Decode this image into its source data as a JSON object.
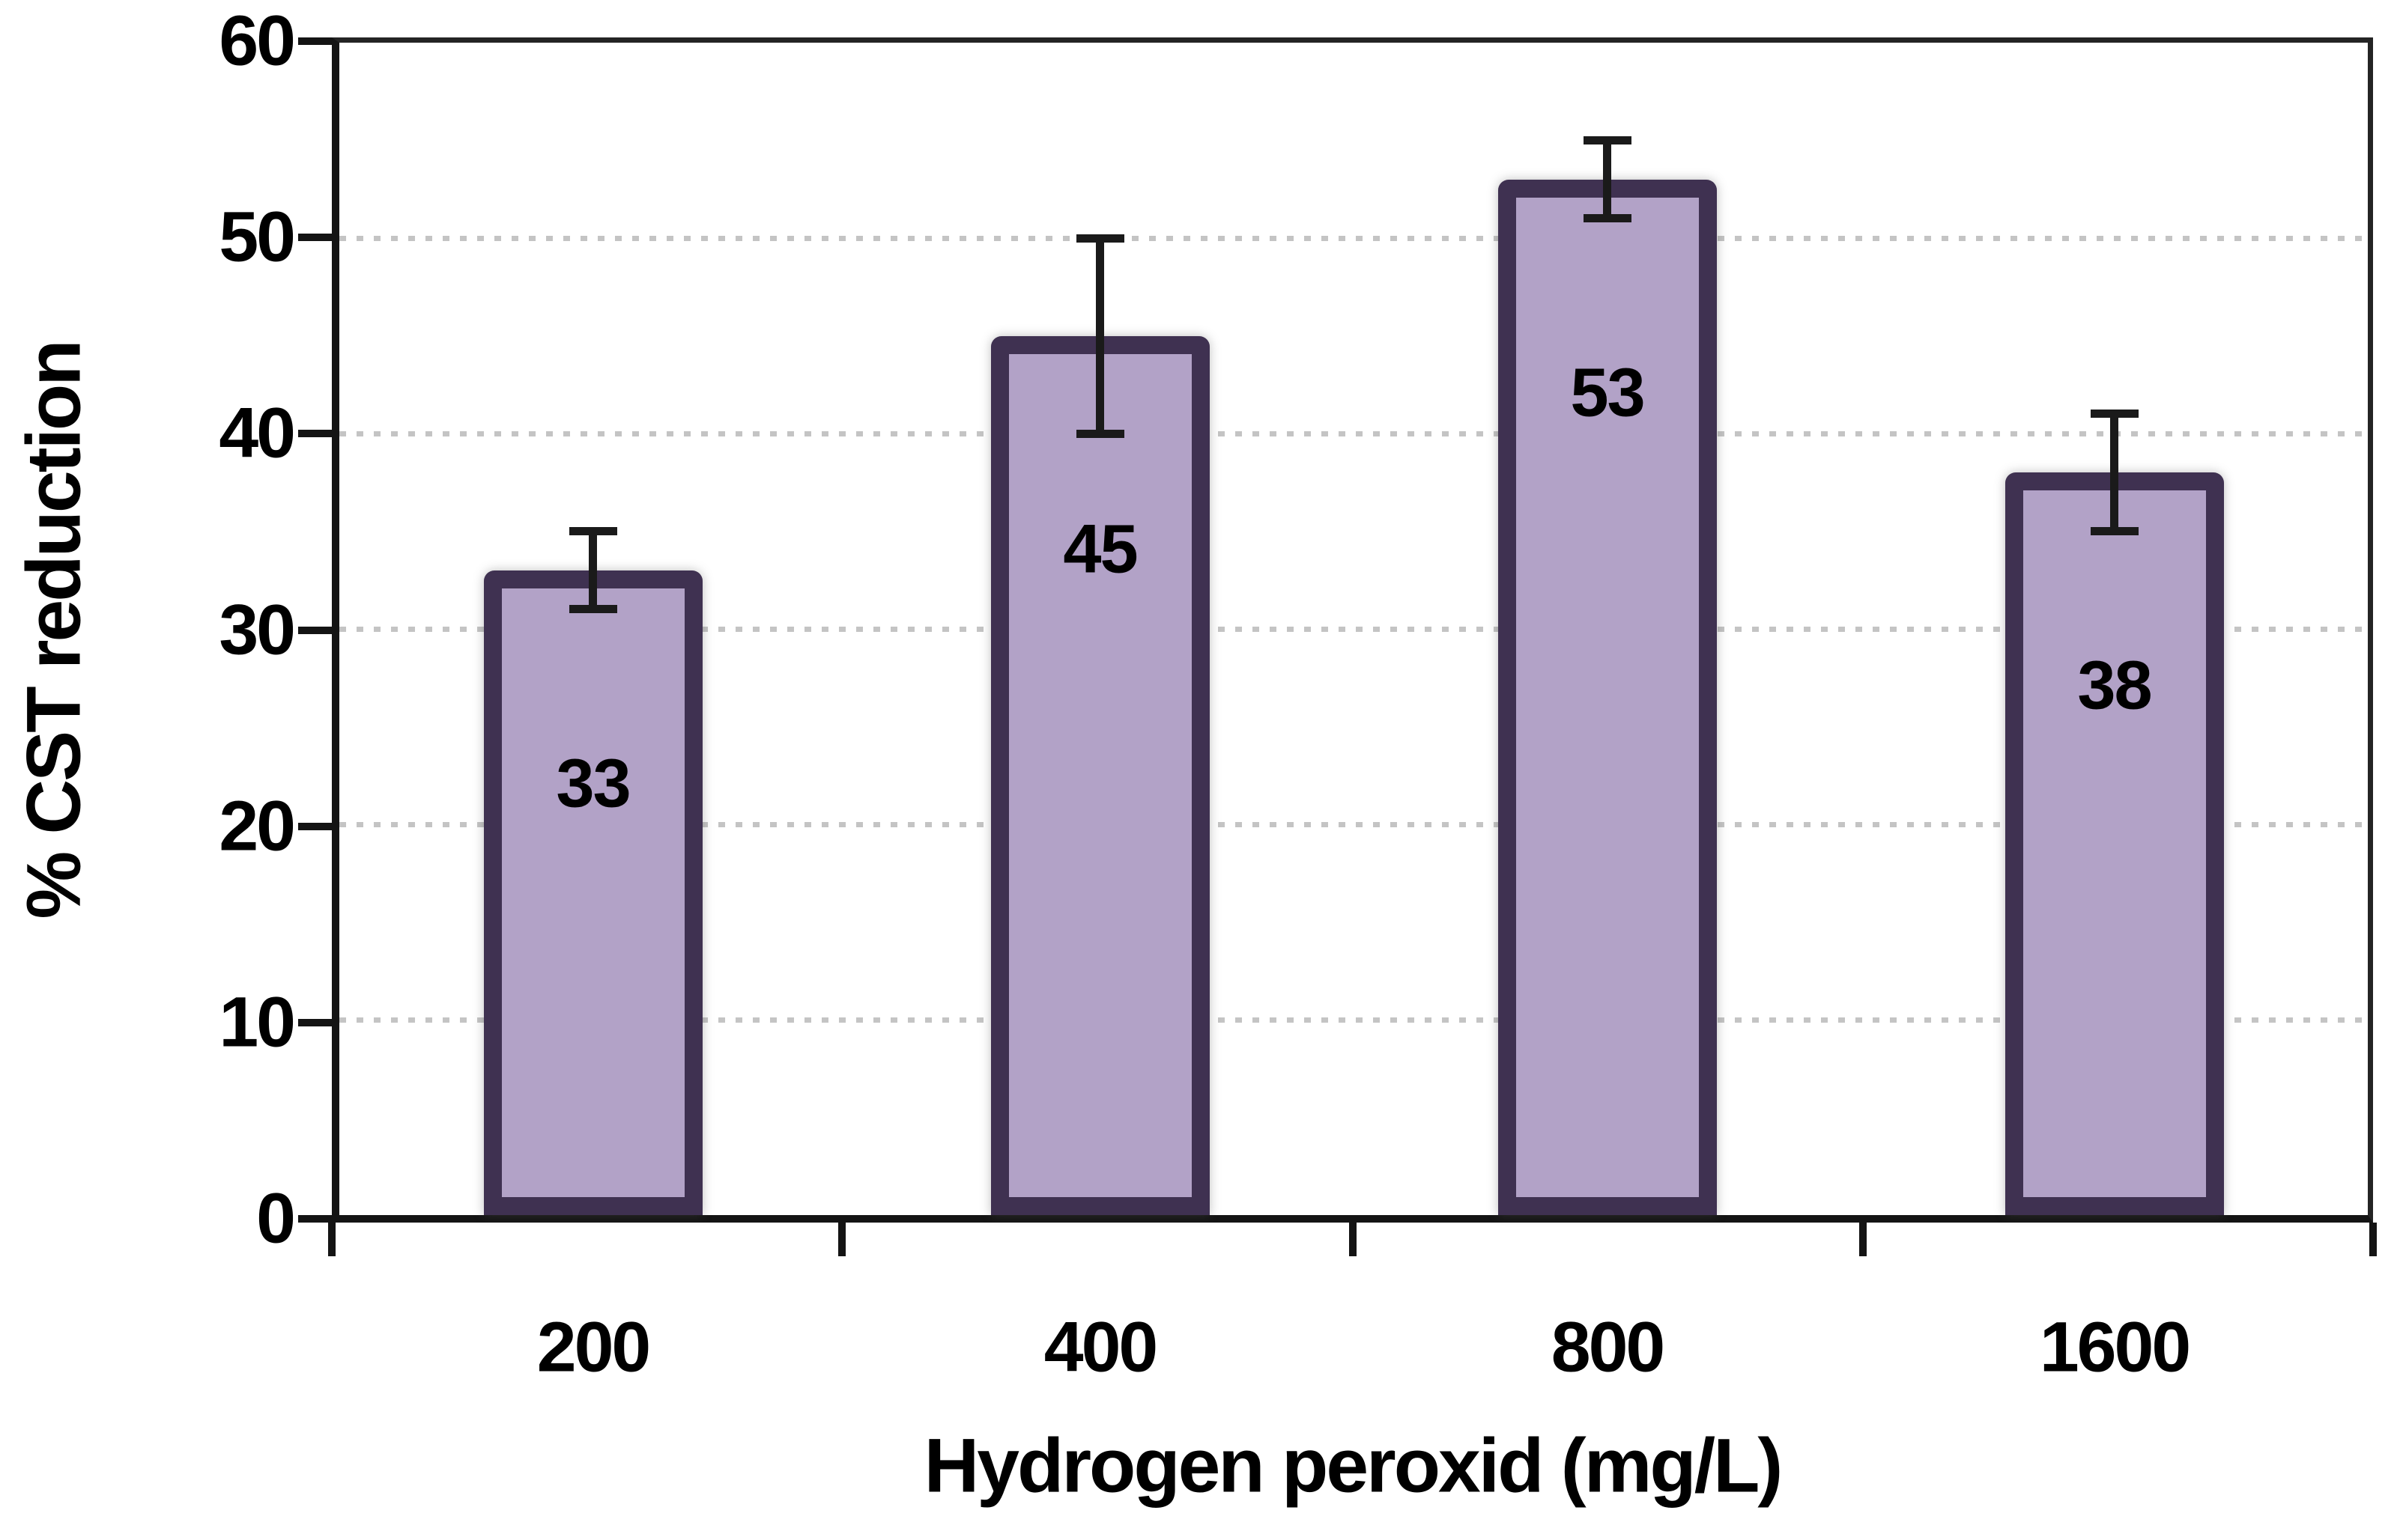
{
  "chart_data": {
    "type": "bar",
    "title": "",
    "categories": [
      "200",
      "400",
      "800",
      "1600"
    ],
    "values": [
      33,
      45,
      53,
      38
    ],
    "data_labels": [
      "33",
      "45",
      "53",
      "38"
    ],
    "error_bars": {
      "low": [
        31,
        40,
        51,
        35
      ],
      "high": [
        35,
        50,
        55,
        41
      ]
    },
    "xlabel": "Hydrogen peroxid (mg/L)",
    "ylabel": "% CST reduction",
    "ylim": [
      0,
      60
    ],
    "yticks": [
      "0",
      "10",
      "20",
      "30",
      "40",
      "50",
      "60"
    ],
    "grid": {
      "horizontal": true,
      "style": "dotted",
      "on": true
    },
    "legend": "none",
    "colors": {
      "bar_fill": "#b2a2c7",
      "bar_border": "#3f3151",
      "axis": "#141414",
      "gridline": "#c4c4c4",
      "error_bar": "#1a1a1a",
      "text": "#000000",
      "background": "#ffffff"
    }
  }
}
